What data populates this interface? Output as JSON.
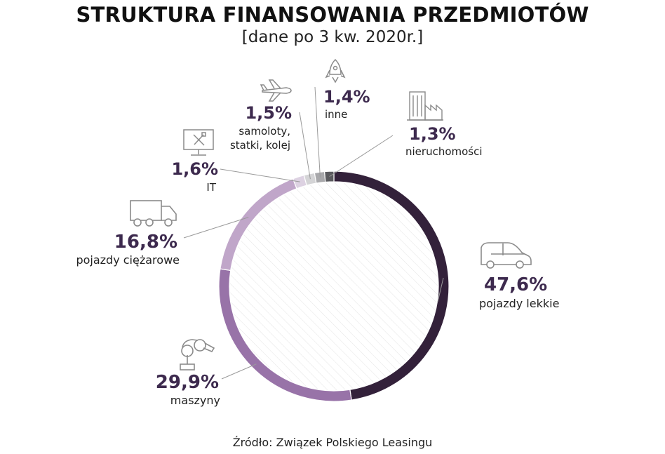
{
  "title": "STRUKTURA FINANSOWANIA PRZEDMIOTÓW",
  "subtitle": "[dane po 3 kw. 2020r.]",
  "source": "Źródło: Związek Polskiego Leasingu",
  "chart_data": {
    "type": "pie",
    "style": "donut",
    "title": "STRUKTURA FINANSOWANIA PRZEDMIOTÓW",
    "subtitle": "[dane po 3 kw. 2020r.]",
    "slices": [
      {
        "label": "pojazdy lekkie",
        "value": 47.6,
        "display": "47,6%",
        "color": "#33213a",
        "icon": "car-icon"
      },
      {
        "label": "maszyny",
        "value": 29.9,
        "display": "29,9%",
        "color": "#9873a8",
        "icon": "robot-arm-icon"
      },
      {
        "label": "pojazdy ciężarowe",
        "value": 16.8,
        "display": "16,8%",
        "color": "#c0a6c9",
        "icon": "truck-icon"
      },
      {
        "label": "IT",
        "value": 1.6,
        "display": "1,6%",
        "color": "#ddd2e2",
        "icon": "computer-tools-icon"
      },
      {
        "label": "samoloty, statki, kolej",
        "value": 1.5,
        "display": "1,5%",
        "color": "#d4d4d6",
        "icon": "airplane-icon"
      },
      {
        "label": "inne",
        "value": 1.4,
        "display": "1,4%",
        "color": "#a8a8ab",
        "icon": "rocket-icon"
      },
      {
        "label": "nieruchomości",
        "value": 1.3,
        "display": "1,3%",
        "color": "#5a5a5e",
        "icon": "buildings-icon"
      }
    ]
  }
}
